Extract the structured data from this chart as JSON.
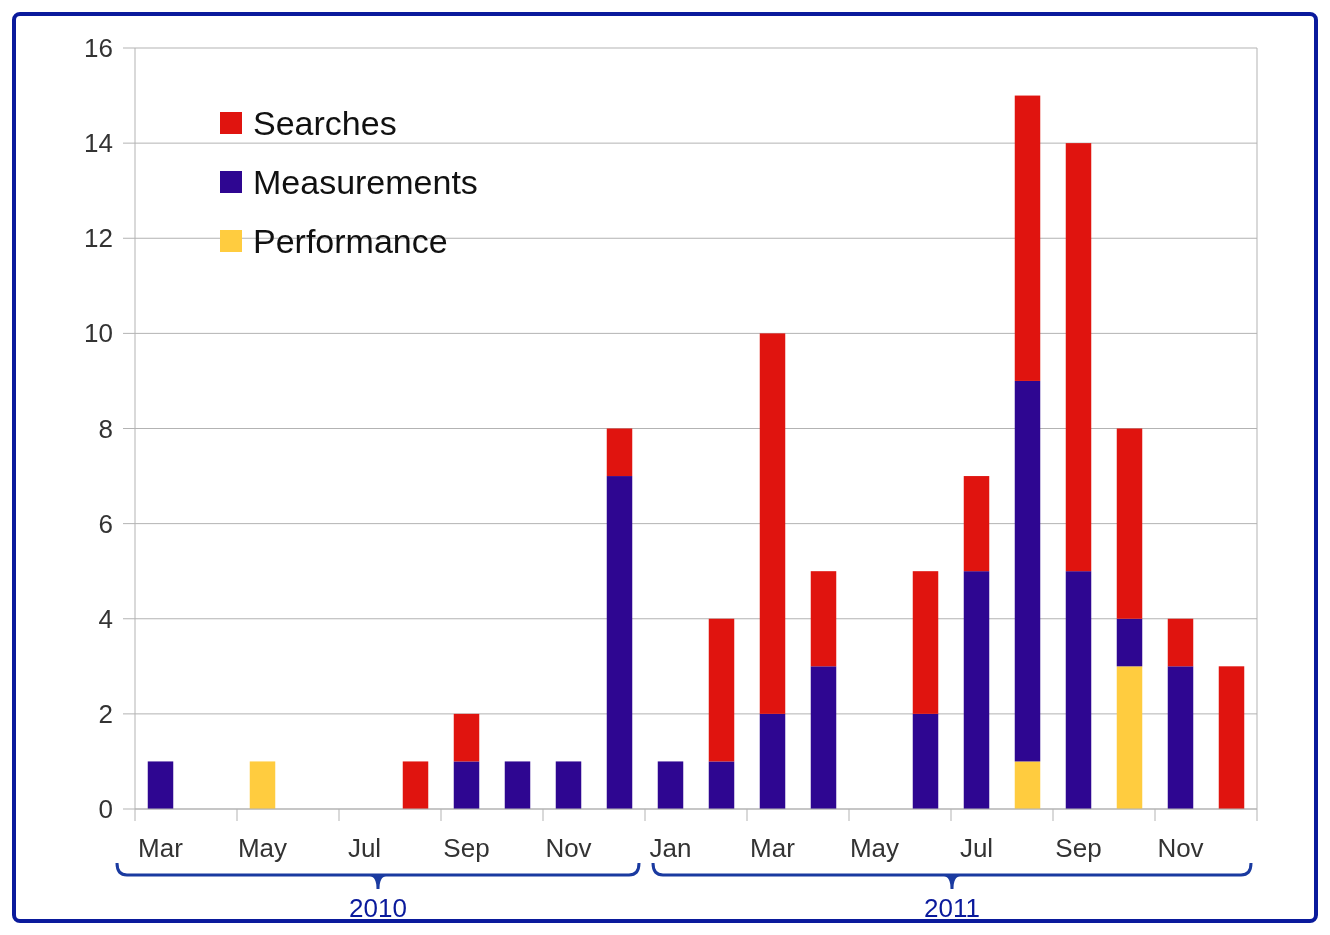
{
  "chart_data": {
    "type": "bar",
    "stacked": true,
    "categories": [
      "Mar",
      null,
      "May",
      null,
      "Jul",
      null,
      "Sep",
      null,
      "Nov",
      null,
      "Jan",
      null,
      "Mar",
      null,
      "May",
      null,
      "Jul",
      null,
      "Sep",
      null,
      "Nov",
      null
    ],
    "series": [
      {
        "name": "Performance",
        "color": "#ffcc3f",
        "values": [
          0,
          0,
          1,
          0,
          0,
          0,
          0,
          0,
          0,
          0,
          0,
          0,
          0,
          0,
          0,
          0,
          0,
          1,
          0,
          3,
          0,
          0
        ]
      },
      {
        "name": "Measurements",
        "color": "#2e0691",
        "values": [
          1,
          0,
          0,
          0,
          0,
          0,
          1,
          1,
          1,
          7,
          1,
          1,
          2,
          3,
          0,
          2,
          5,
          8,
          5,
          1,
          3,
          0
        ]
      },
      {
        "name": "Searches",
        "color": "#e0140f",
        "values": [
          0,
          0,
          0,
          0,
          0,
          1,
          1,
          0,
          0,
          1,
          0,
          3,
          8,
          2,
          0,
          3,
          2,
          6,
          9,
          4,
          1,
          3
        ]
      }
    ],
    "ylim": [
      0,
      16
    ],
    "yticks": [
      0,
      2,
      4,
      6,
      8,
      10,
      12,
      14,
      16
    ],
    "grid": "y",
    "legend": "top left",
    "annotations": [
      "2010",
      "2011"
    ]
  }
}
